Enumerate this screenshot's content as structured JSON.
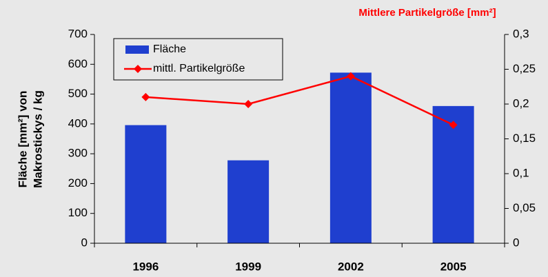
{
  "chart_data": {
    "type": "bar",
    "ylabel": [
      "Fläche [mm²] von",
      "Makrostickys / kg"
    ],
    "y2label": "Mittlere Partikelgröße [mm²]",
    "categories": [
      "1996",
      "1999",
      "2002",
      "2005"
    ],
    "series": [
      {
        "name": "Fläche",
        "type": "bar",
        "color": "#1f3fcf",
        "values": [
          396,
          278,
          572,
          460
        ]
      },
      {
        "name": "mittl. Partikelgröße",
        "type": "line",
        "axis": "y2",
        "color": "#ff0000",
        "values": [
          0.21,
          0.2,
          0.24,
          0.17
        ]
      }
    ],
    "ylim": [
      0,
      700
    ],
    "yticks": [
      0,
      100,
      200,
      300,
      400,
      500,
      600,
      700
    ],
    "y2lim": [
      0,
      0.3
    ],
    "y2ticks": [
      {
        "value": 0,
        "label": "0"
      },
      {
        "value": 0.05,
        "label": "0,05"
      },
      {
        "value": 0.1,
        "label": "0,1"
      },
      {
        "value": 0.15,
        "label": "0,15"
      },
      {
        "value": 0.2,
        "label": "0,2"
      },
      {
        "value": 0.25,
        "label": "0,25"
      },
      {
        "value": 0.3,
        "label": "0,3"
      }
    ],
    "legend": "top-left"
  }
}
